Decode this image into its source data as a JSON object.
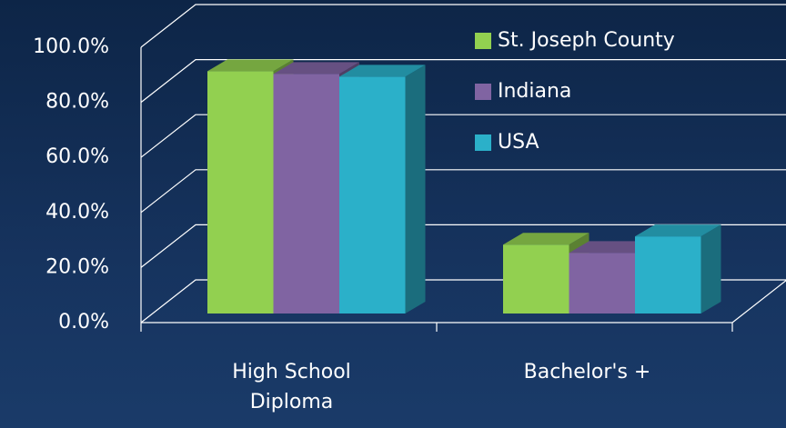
{
  "chart_data": {
    "type": "bar3d",
    "categories": [
      "High School Diploma",
      "Bachelor's +"
    ],
    "series": [
      {
        "name": "St. Joseph County",
        "color": "#92d050",
        "values": [
          88,
          25
        ]
      },
      {
        "name": "Indiana",
        "color": "#8064a2",
        "values": [
          87,
          22
        ]
      },
      {
        "name": "USA",
        "color": "#2bb0c9",
        "values": [
          86,
          28
        ]
      }
    ],
    "ylim": [
      0,
      100
    ],
    "yticks": [
      {
        "value": 0,
        "label": "0.0%"
      },
      {
        "value": 20,
        "label": "20.0%"
      },
      {
        "value": 40,
        "label": "40.0%"
      },
      {
        "value": 60,
        "label": "60.0%"
      },
      {
        "value": 80,
        "label": "80.0%"
      },
      {
        "value": 100,
        "label": "100.0%"
      }
    ],
    "grid": true,
    "legend": "top-right"
  }
}
